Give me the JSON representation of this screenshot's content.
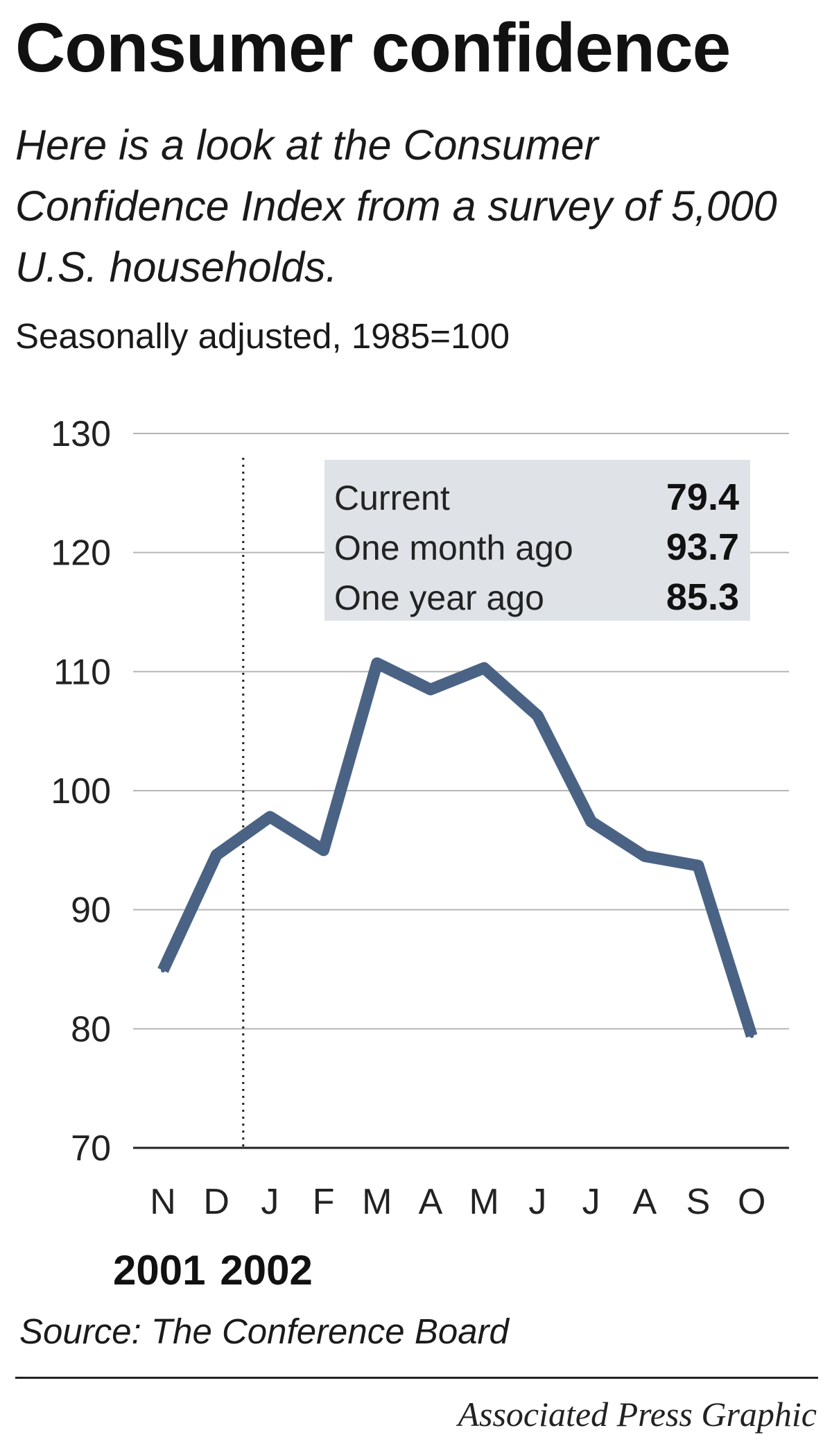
{
  "header": {
    "title": "Consumer confidence",
    "subtitle": "Here is a look at the Consumer Confidence Index from a survey of 5,000 U.S. households.",
    "note": "Seasonally adjusted, 1985=100"
  },
  "footer": {
    "source": "Source: The Conference Board",
    "credit": "Associated Press Graphic"
  },
  "chart_data": {
    "type": "line",
    "x": [
      "N",
      "D",
      "J",
      "F",
      "M",
      "A",
      "M",
      "J",
      "J",
      "A",
      "S",
      "O"
    ],
    "x_groups": [
      {
        "label": "2001",
        "start_index": 0
      },
      {
        "label": "2002",
        "start_index": 2
      }
    ],
    "series": [
      {
        "values": [
          84.9,
          94.6,
          97.8,
          95.0,
          110.7,
          108.5,
          110.3,
          106.3,
          97.4,
          94.5,
          93.7,
          79.4
        ]
      }
    ],
    "ylim": [
      70,
      130
    ],
    "yticks": [
      130,
      120,
      110,
      100,
      90,
      80,
      70
    ],
    "grid": true,
    "year_divider_before_index": 2,
    "line_color": "#4a6384",
    "summary_box": {
      "rows": [
        {
          "label": "Current",
          "value": "79.4"
        },
        {
          "label": "One month ago",
          "value": "93.7"
        },
        {
          "label": "One year ago",
          "value": "85.3"
        }
      ],
      "background": "#dfe3e8"
    }
  }
}
